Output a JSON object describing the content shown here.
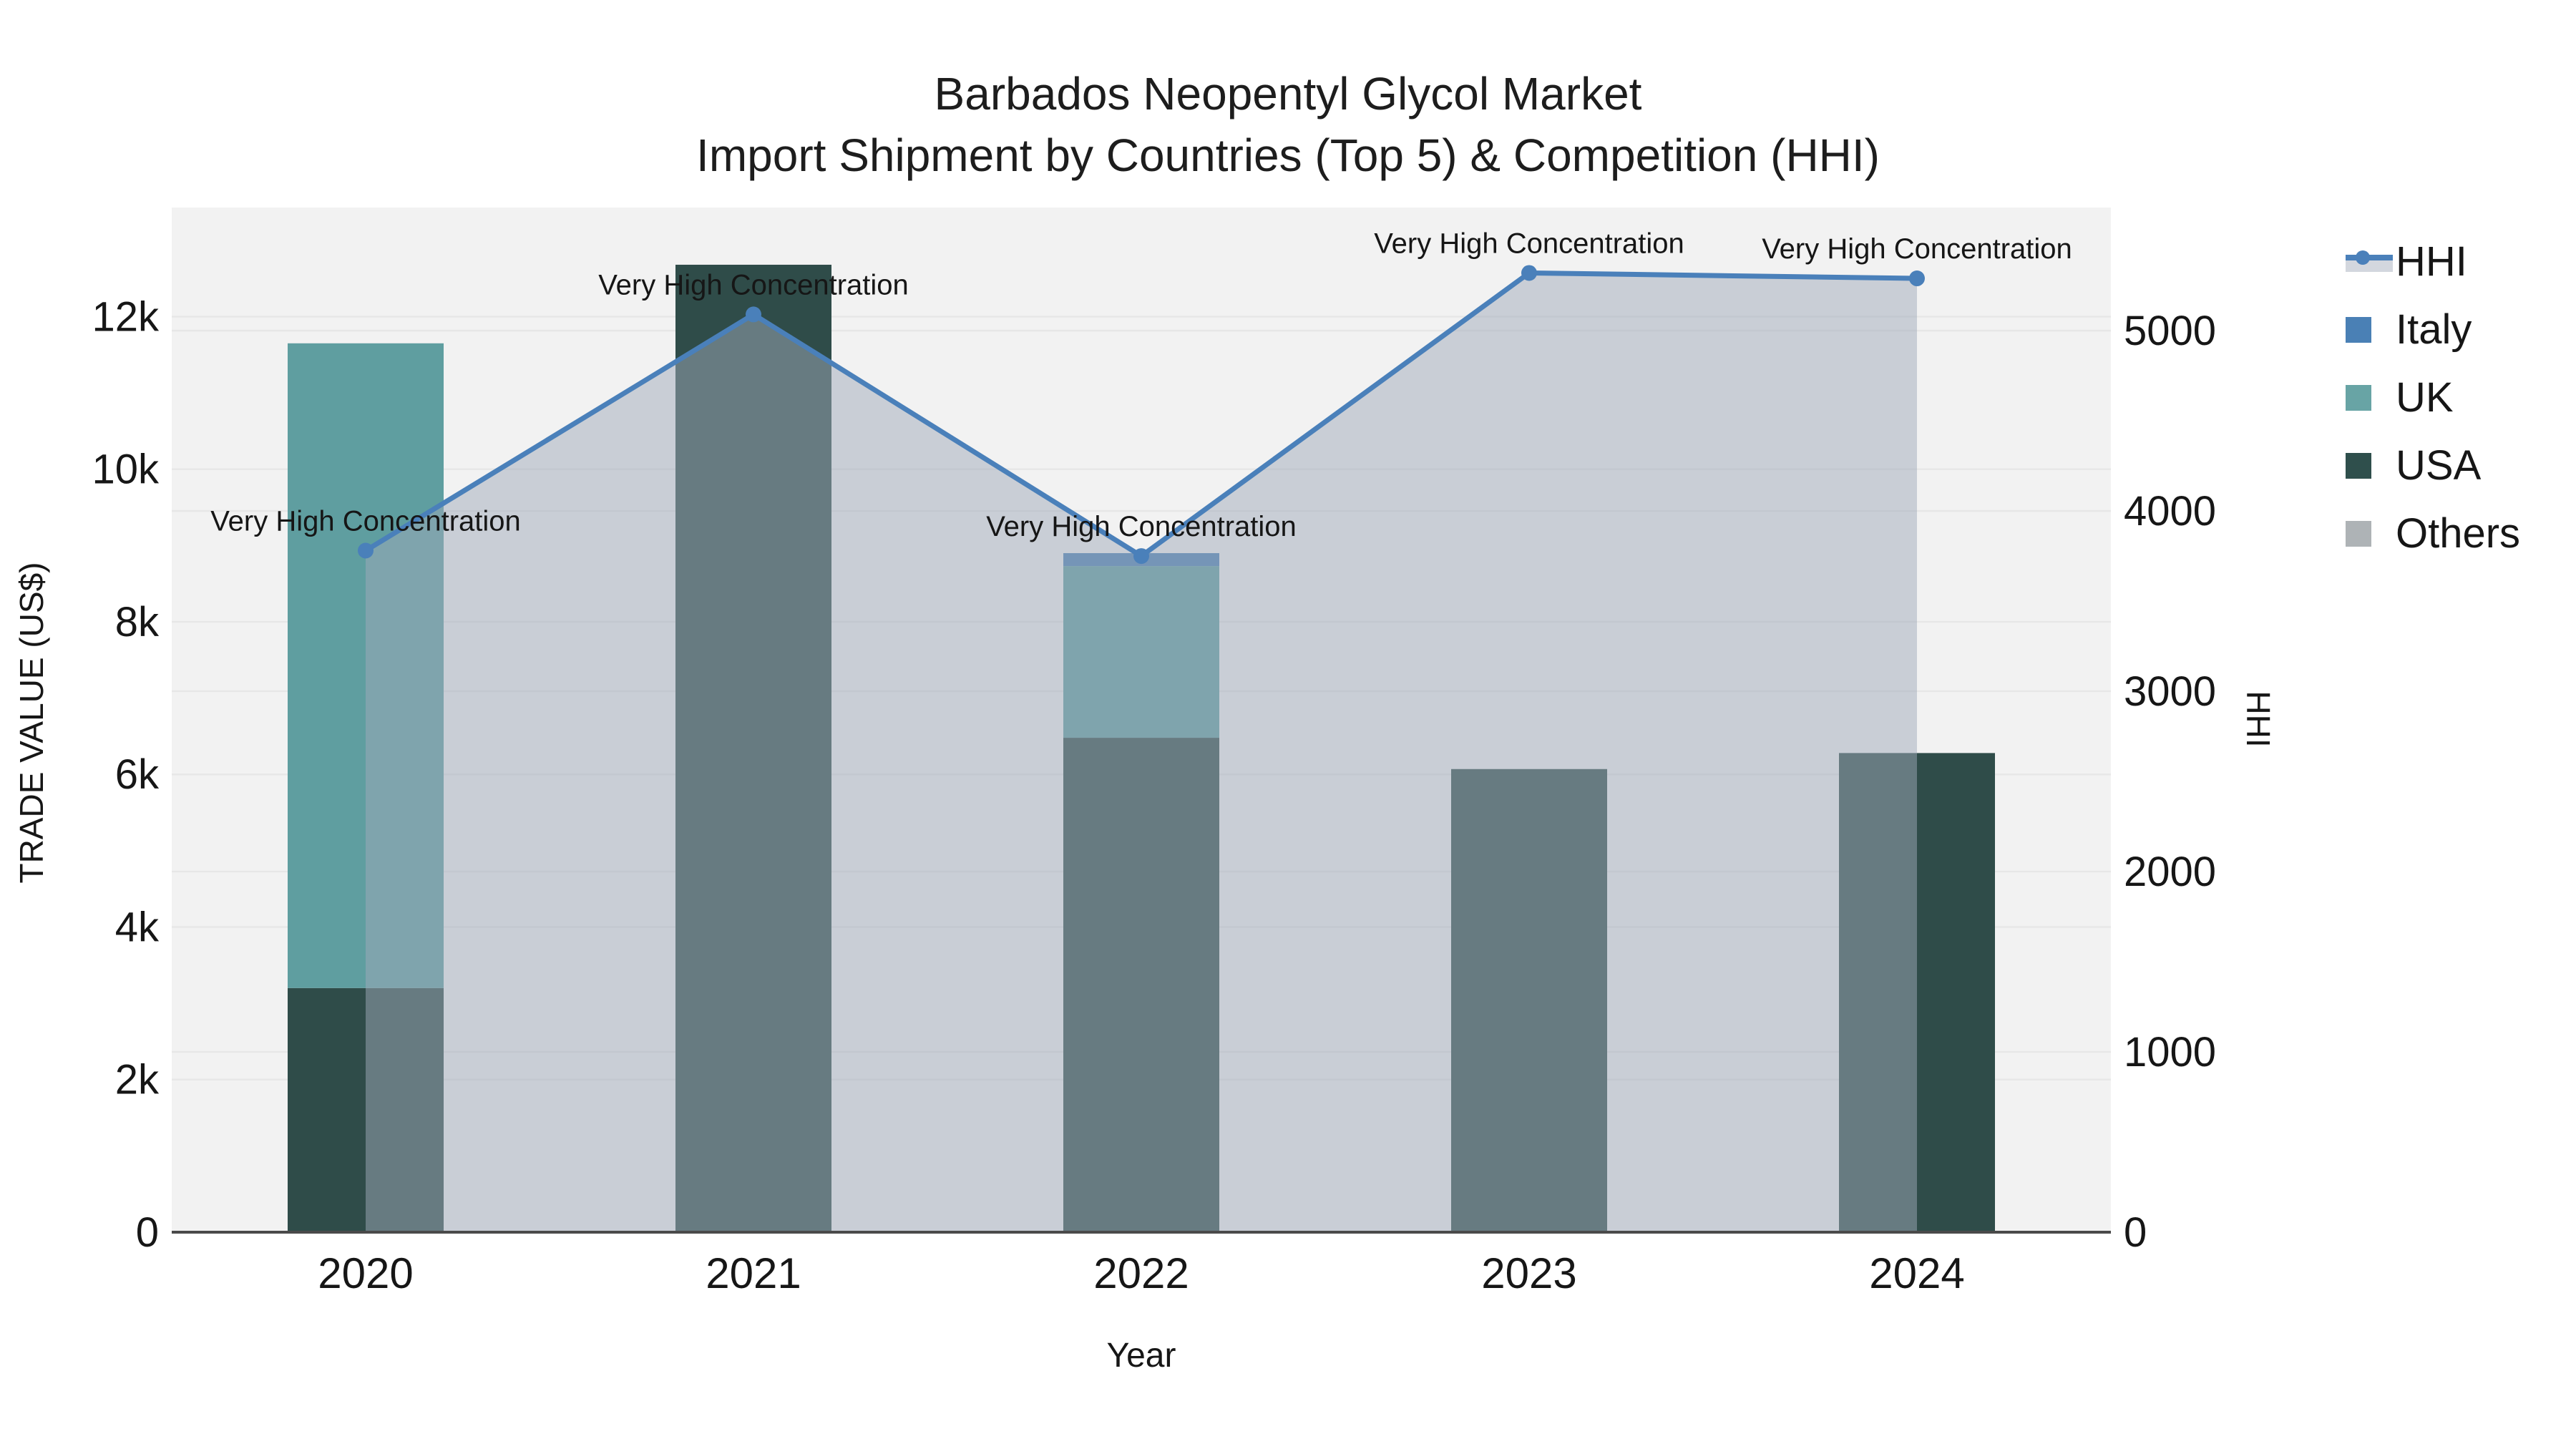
{
  "chart_data": {
    "type": "combo-stacked-bar-line",
    "title": [
      "Barbados Neopentyl Glycol Market",
      "Import Shipment by Countries (Top 5) & Competition (HHI)"
    ],
    "xlabel": "Year",
    "ylabel_left": "TRADE VALUE (US$)",
    "ylabel_right": "HHI",
    "categories": [
      "2020",
      "2021",
      "2022",
      "2023",
      "2024"
    ],
    "bar_series": [
      {
        "name": "USA",
        "color": "#2f4c49",
        "values": [
          3200,
          12680,
          6480,
          6070,
          6280
        ]
      },
      {
        "name": "UK",
        "color": "#5f9ea0",
        "values": [
          8450,
          0,
          2250,
          0,
          0
        ]
      },
      {
        "name": "Italy",
        "color": "#4a80b5",
        "values": [
          0,
          0,
          170,
          0,
          0
        ]
      }
    ],
    "others_series": {
      "name": "Others",
      "color": "#aeb3b6",
      "values": [
        0,
        0,
        0,
        0,
        0
      ]
    },
    "line_series": {
      "name": "HHI",
      "color": "#4a80ba",
      "values": [
        3780,
        5090,
        3750,
        5320,
        5290
      ]
    },
    "stack_totals": [
      11650,
      12680,
      8900,
      6070,
      6280
    ],
    "annotations": [
      "Very High Concentration",
      "Very High Concentration",
      "Very High Concentration",
      "Very High Concentration",
      "Very High Concentration"
    ],
    "left_axis": {
      "tick_labels": [
        "0",
        "2k",
        "4k",
        "6k",
        "8k",
        "10k",
        "12k"
      ],
      "tick_values": [
        0,
        2000,
        4000,
        6000,
        8000,
        10000,
        12000
      ],
      "max": 13430
    },
    "right_axis": {
      "tick_labels": [
        "0",
        "1000",
        "2000",
        "3000",
        "4000",
        "5000"
      ],
      "tick_values": [
        0,
        1000,
        2000,
        3000,
        4000,
        5000
      ],
      "max": 5683
    },
    "legend": [
      {
        "label": "HHI",
        "color": "#4a80ba",
        "band": "#d3d7de",
        "type": "line"
      },
      {
        "label": "Italy",
        "color": "#4a80b5",
        "type": "square"
      },
      {
        "label": "UK",
        "color": "#68a4a5",
        "type": "square"
      },
      {
        "label": "USA",
        "color": "#2f4f4c",
        "type": "square"
      },
      {
        "label": "Others",
        "color": "#aeb3b6",
        "type": "square"
      }
    ],
    "colors": {
      "plot_bg": "#f2f2f2",
      "grid": "#e7e7e7",
      "axis_line": "#4a4a4a",
      "area_fill": "rgba(160,170,186,0.5)",
      "text": "#161616"
    }
  }
}
